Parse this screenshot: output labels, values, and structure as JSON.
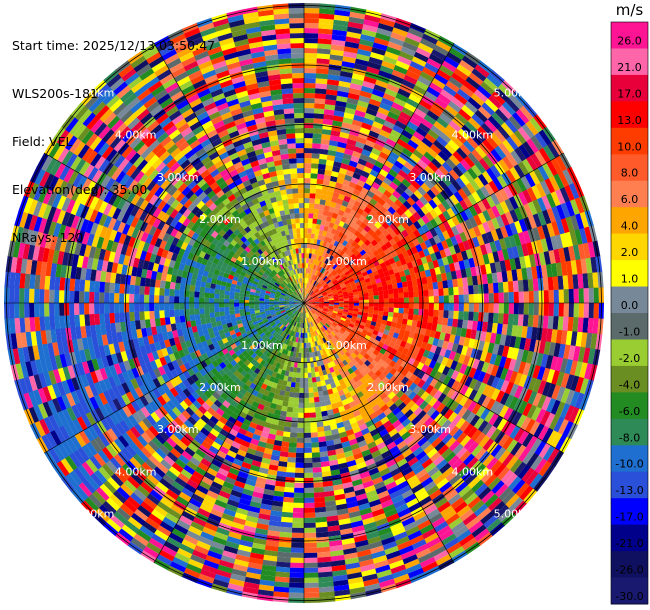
{
  "header": {
    "start_time": "Start time: 2025/12/13 03:50:47",
    "instrument": "WLS200s-181",
    "field": "Field: VEL",
    "elevation": "Elevation(deg): 35.00",
    "nrays": "NRays: 120"
  },
  "chart_data": {
    "type": "heatmap",
    "projection": "polar",
    "rays": 120,
    "range_rings_km": [
      "1.00km",
      "2.00km",
      "3.00km",
      "4.00km",
      "5.00km"
    ],
    "colorbar": {
      "unit": "m/s",
      "ticks": [
        "26.0",
        "21.0",
        "17.0",
        "13.0",
        "10.0",
        "8.0",
        "6.0",
        "4.0",
        "2.0",
        "1.0",
        "0.0",
        "-1.0",
        "-2.0",
        "-4.0",
        "-6.0",
        "-8.0",
        "-10.0",
        "-13.0",
        "-17.0",
        "-21.0",
        "-26.0",
        "-30.0"
      ],
      "colors": [
        "#ff1493",
        "#ff66aa",
        "#e8003a",
        "#ff0000",
        "#ff3c00",
        "#ff5a2a",
        "#ff7f50",
        "#ffa500",
        "#ffd700",
        "#ffff00",
        "#778899",
        "#5b6b6b",
        "#9acd32",
        "#6b8e23",
        "#228b22",
        "#2e8b57",
        "#1e6fd0",
        "#2a4fd8",
        "#0000ff",
        "#00008b",
        "#101060",
        "#191970"
      ]
    }
  }
}
